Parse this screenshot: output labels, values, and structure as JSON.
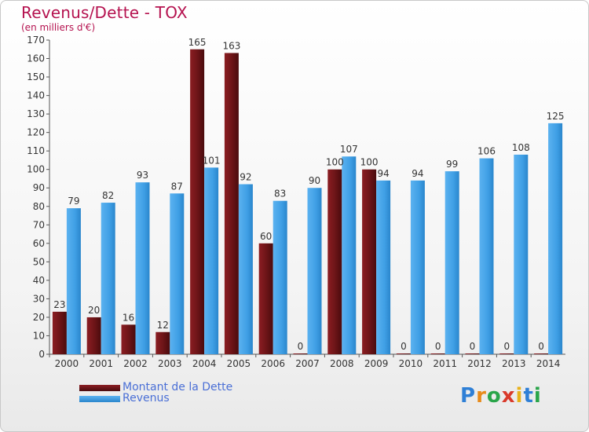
{
  "chart_data": {
    "type": "bar",
    "title": "Revenus/Dette - TOX",
    "subtitle": "(en milliers d'€)",
    "categories": [
      "2000",
      "2001",
      "2002",
      "2003",
      "2004",
      "2005",
      "2006",
      "2007",
      "2008",
      "2009",
      "2010",
      "2011",
      "2012",
      "2013",
      "2014"
    ],
    "series": [
      {
        "name": "Montant de la Dette",
        "color": "#6e1518",
        "values": [
          23,
          20,
          16,
          12,
          165,
          163,
          60,
          0,
          100,
          100,
          0,
          0,
          0,
          0,
          0
        ]
      },
      {
        "name": "Revenus",
        "color": "#3f9fe5",
        "values": [
          79,
          82,
          93,
          87,
          101,
          92,
          83,
          90,
          107,
          94,
          94,
          99,
          106,
          108,
          125
        ]
      }
    ],
    "ylim": [
      0,
      170
    ],
    "yticks": [
      0,
      10,
      20,
      30,
      40,
      50,
      60,
      70,
      80,
      90,
      100,
      110,
      120,
      130,
      140,
      150,
      160,
      170
    ],
    "grid": false,
    "legend": "bottom-left"
  },
  "brand": {
    "letters": [
      "P",
      "r",
      "o",
      "x",
      "i",
      "t",
      "i"
    ],
    "colors": [
      "#2e7fd6",
      "#e88a1a",
      "#2aa54a",
      "#d93a2b",
      "#e8b21a",
      "#2e7fd6",
      "#2aa54a"
    ]
  }
}
